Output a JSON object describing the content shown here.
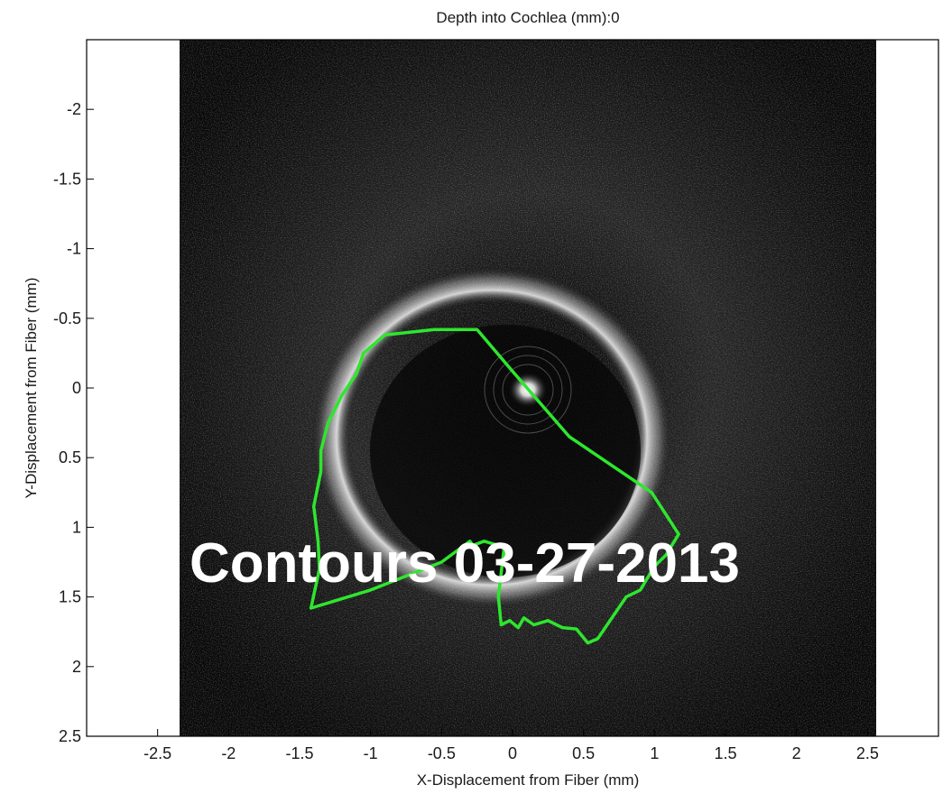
{
  "chart_data": {
    "type": "scatter",
    "title": "Depth into Cochlea (mm):0",
    "xlabel": "X-Displacement from Fiber (mm)",
    "ylabel": "Y-Displacement from Fiber (mm)",
    "xlim": [
      -3.0,
      3.0
    ],
    "ylim": [
      2.5,
      -2.5
    ],
    "y_axis_inverted": true,
    "image_extent_x": [
      -2.5,
      2.5
    ],
    "xticks": [
      -2.5,
      -2,
      -1.5,
      -1,
      -0.5,
      0,
      0.5,
      1,
      1.5,
      2,
      2.5
    ],
    "xtick_labels": [
      "-2.5",
      "-2",
      "-1.5",
      "-1",
      "-0.5",
      "0",
      "0.5",
      "1",
      "1.5",
      "2",
      "2.5"
    ],
    "yticks": [
      -2,
      -1.5,
      -1,
      -0.5,
      0,
      0.5,
      1,
      1.5,
      2,
      2.5
    ],
    "ytick_labels": [
      "-2",
      "-1.5",
      "-1",
      "-0.5",
      "0",
      "0.5",
      "1",
      "1.5",
      "2",
      "2.5"
    ],
    "grid": false,
    "background": "grayscale OCT intensity image",
    "annotation": "Contours 03-27-2013",
    "series": [
      {
        "color": "#2ee62e",
        "closed": true,
        "x": [
          -0.25,
          -0.55,
          -0.9,
          -1.05,
          -1.1,
          -1.2,
          -1.25,
          -1.3,
          -1.35,
          -1.35,
          -1.4,
          -1.37,
          -1.36,
          -1.42,
          -1.0,
          -0.5,
          -0.3,
          -0.28,
          -0.2,
          -0.1,
          -0.06,
          -0.1,
          -0.08,
          -0.02,
          0.04,
          0.08,
          0.15,
          0.25,
          0.35,
          0.45,
          0.53,
          0.6,
          0.8,
          0.9,
          1.0,
          1.08,
          1.17,
          0.98,
          0.4,
          0.0
        ],
        "y": [
          -0.42,
          -0.42,
          -0.38,
          -0.25,
          -0.1,
          0.05,
          0.15,
          0.25,
          0.45,
          0.6,
          0.85,
          1.1,
          1.3,
          1.58,
          1.45,
          1.25,
          1.1,
          1.13,
          1.1,
          1.13,
          1.15,
          1.5,
          1.7,
          1.67,
          1.72,
          1.65,
          1.7,
          1.67,
          1.72,
          1.73,
          1.83,
          1.8,
          1.5,
          1.45,
          1.28,
          1.2,
          1.05,
          0.75,
          0.35,
          -0.12
        ]
      }
    ]
  }
}
